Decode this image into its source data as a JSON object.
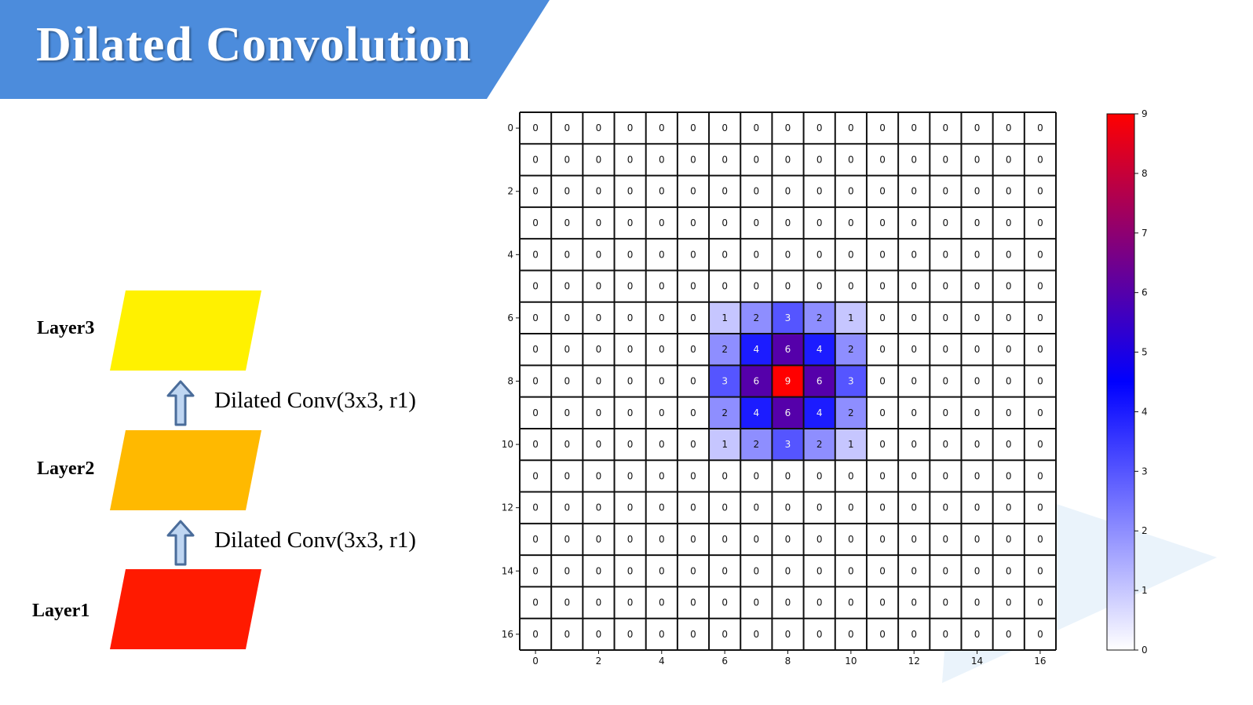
{
  "title": "Dilated Convolution",
  "layers": [
    {
      "label": "Layer3",
      "color": "#FFF100"
    },
    {
      "label": "Layer2",
      "color": "#FFB900"
    },
    {
      "label": "Layer1",
      "color": "#FF1A00"
    }
  ],
  "operations": [
    {
      "label": "Dilated Conv(3x3, r1)"
    },
    {
      "label": "Dilated Conv(3x3, r1)"
    }
  ],
  "colors": {
    "banner": "#4C8CDC",
    "arrow_fill": "#BFD6F2",
    "arrow_stroke": "#4A6C9A",
    "colormap": [
      "#FFFFFF",
      "#0000FF",
      "#FF0000"
    ]
  },
  "chart_data": {
    "type": "heatmap",
    "x_ticks": [
      0,
      2,
      4,
      6,
      8,
      10,
      12,
      14,
      16
    ],
    "y_ticks": [
      0,
      2,
      4,
      6,
      8,
      10,
      12,
      14,
      16
    ],
    "colorbar_ticks": [
      0,
      1,
      2,
      3,
      4,
      5,
      6,
      7,
      8,
      9
    ],
    "value_range": [
      0,
      9
    ],
    "values": [
      [
        0,
        0,
        0,
        0,
        0,
        0,
        0,
        0,
        0,
        0,
        0,
        0,
        0,
        0,
        0,
        0,
        0
      ],
      [
        0,
        0,
        0,
        0,
        0,
        0,
        0,
        0,
        0,
        0,
        0,
        0,
        0,
        0,
        0,
        0,
        0
      ],
      [
        0,
        0,
        0,
        0,
        0,
        0,
        0,
        0,
        0,
        0,
        0,
        0,
        0,
        0,
        0,
        0,
        0
      ],
      [
        0,
        0,
        0,
        0,
        0,
        0,
        0,
        0,
        0,
        0,
        0,
        0,
        0,
        0,
        0,
        0,
        0
      ],
      [
        0,
        0,
        0,
        0,
        0,
        0,
        0,
        0,
        0,
        0,
        0,
        0,
        0,
        0,
        0,
        0,
        0
      ],
      [
        0,
        0,
        0,
        0,
        0,
        0,
        0,
        0,
        0,
        0,
        0,
        0,
        0,
        0,
        0,
        0,
        0
      ],
      [
        0,
        0,
        0,
        0,
        0,
        0,
        1,
        2,
        3,
        2,
        1,
        0,
        0,
        0,
        0,
        0,
        0
      ],
      [
        0,
        0,
        0,
        0,
        0,
        0,
        2,
        4,
        6,
        4,
        2,
        0,
        0,
        0,
        0,
        0,
        0
      ],
      [
        0,
        0,
        0,
        0,
        0,
        0,
        3,
        6,
        9,
        6,
        3,
        0,
        0,
        0,
        0,
        0,
        0
      ],
      [
        0,
        0,
        0,
        0,
        0,
        0,
        2,
        4,
        6,
        4,
        2,
        0,
        0,
        0,
        0,
        0,
        0
      ],
      [
        0,
        0,
        0,
        0,
        0,
        0,
        1,
        2,
        3,
        2,
        1,
        0,
        0,
        0,
        0,
        0,
        0
      ],
      [
        0,
        0,
        0,
        0,
        0,
        0,
        0,
        0,
        0,
        0,
        0,
        0,
        0,
        0,
        0,
        0,
        0
      ],
      [
        0,
        0,
        0,
        0,
        0,
        0,
        0,
        0,
        0,
        0,
        0,
        0,
        0,
        0,
        0,
        0,
        0
      ],
      [
        0,
        0,
        0,
        0,
        0,
        0,
        0,
        0,
        0,
        0,
        0,
        0,
        0,
        0,
        0,
        0,
        0
      ],
      [
        0,
        0,
        0,
        0,
        0,
        0,
        0,
        0,
        0,
        0,
        0,
        0,
        0,
        0,
        0,
        0,
        0
      ],
      [
        0,
        0,
        0,
        0,
        0,
        0,
        0,
        0,
        0,
        0,
        0,
        0,
        0,
        0,
        0,
        0,
        0
      ],
      [
        0,
        0,
        0,
        0,
        0,
        0,
        0,
        0,
        0,
        0,
        0,
        0,
        0,
        0,
        0,
        0,
        0
      ]
    ]
  }
}
